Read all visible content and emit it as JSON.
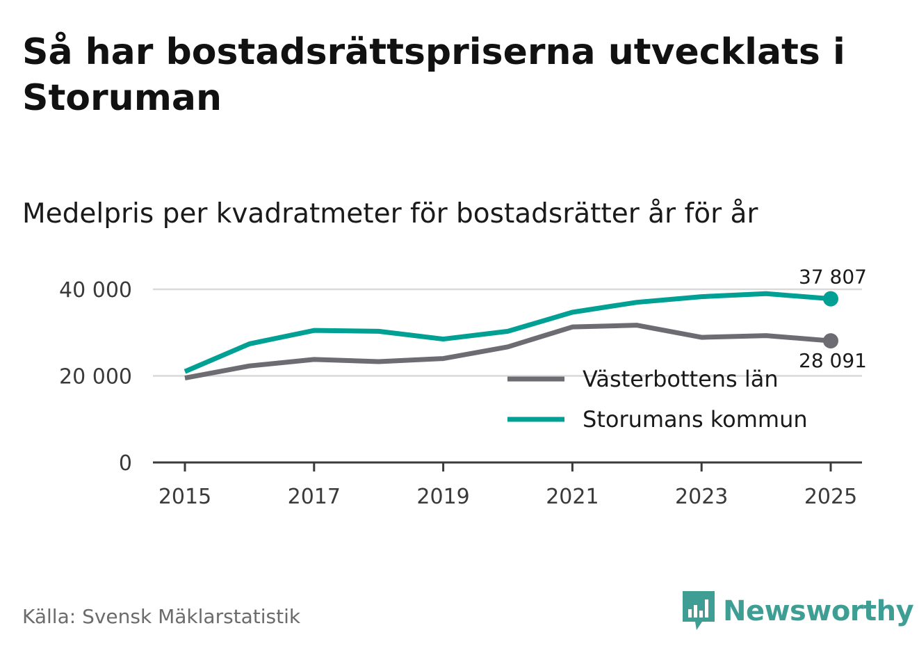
{
  "title": "Så har bostadsrättspriserna utvecklats i Storuman",
  "subtitle": "Medelpris per kvadratmeter för bostadsrätter år för år",
  "source": "Källa: Svensk Mäklarstatistik",
  "brand": "Newsworthy",
  "chart_data": {
    "type": "line",
    "title": "Så har bostadsrättspriserna utvecklats i Storuman",
    "subtitle": "Medelpris per kvadratmeter för bostadsrätter år för år",
    "xlabel": "",
    "ylabel": "",
    "x": [
      2015,
      2016,
      2017,
      2018,
      2019,
      2020,
      2021,
      2022,
      2023,
      2024,
      2025
    ],
    "xlim": [
      2015,
      2025
    ],
    "ylim": [
      0,
      40000
    ],
    "xticks": [
      "2015",
      "2017",
      "2019",
      "2021",
      "2023",
      "2025"
    ],
    "xtick_values": [
      2015,
      2017,
      2019,
      2021,
      2023,
      2025
    ],
    "yticks": [
      "0",
      "20 000",
      "40 000"
    ],
    "ytick_values": [
      0,
      20000,
      40000
    ],
    "grid": true,
    "legend_position": "bottom-right",
    "series": [
      {
        "name": "Västerbottens län",
        "color": "#6e6c73",
        "values": [
          19500,
          22300,
          23800,
          23300,
          24000,
          26700,
          31300,
          31700,
          28900,
          29300,
          28091
        ],
        "end_label": "28 091"
      },
      {
        "name": "Storumans kommun",
        "color": "#00a194",
        "values": [
          21000,
          27400,
          30500,
          30300,
          28500,
          30300,
          34700,
          37000,
          38300,
          39000,
          37807
        ],
        "end_label": "37 807"
      }
    ]
  }
}
